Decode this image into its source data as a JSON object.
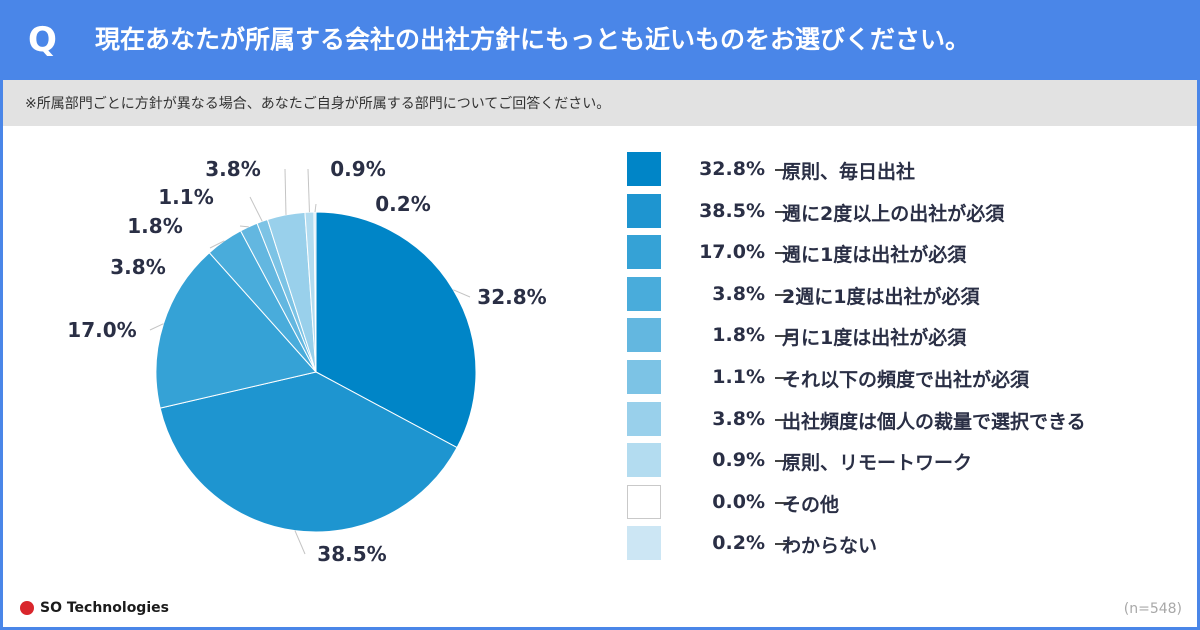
{
  "header": {
    "q_mark": "Q",
    "question": "現在あなたが所属する会社の出社方針にもっとも近いものをお選びください。"
  },
  "note": "※所属部門ごとに方針が異なる場合、あなたご自身が所属する部門についてご回答ください。",
  "chart_data": {
    "type": "pie",
    "categories": [
      "原則、毎日出社",
      "週に2度以上の出社が必須",
      "週に1度は出社が必須",
      "2週に1度は出社が必須",
      "月に1度は出社が必須",
      "それ以下の頻度で出社が必須",
      "出社頻度は個人の裁量で選択できる",
      "原則、リモートワーク",
      "その他",
      "わからない"
    ],
    "values": [
      32.8,
      38.5,
      17.0,
      3.8,
      1.8,
      1.1,
      3.8,
      0.9,
      0.0,
      0.2
    ],
    "value_labels": [
      "32.8%",
      "38.5%",
      "17.0%",
      "3.8%",
      "1.8%",
      "1.1%",
      "3.8%",
      "0.9%",
      "0.0%",
      "0.2%"
    ],
    "colors": [
      "#0085c7",
      "#1e95d0",
      "#35a2d6",
      "#49acdb",
      "#63b7e0",
      "#7cc3e5",
      "#99d0eb",
      "#b3dcf0",
      "#ffffff",
      "#cce6f4"
    ],
    "start": "12 o'clock",
    "direction": "clockwise"
  },
  "footer": {
    "brand": "SO Technologies",
    "sample_size": "(n=548)"
  }
}
